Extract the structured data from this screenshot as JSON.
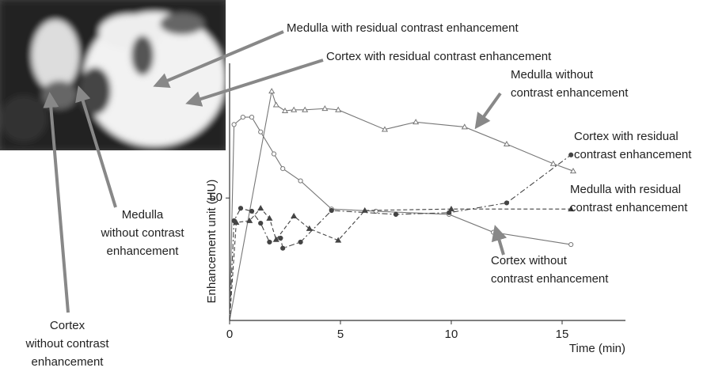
{
  "chart_data": {
    "type": "line",
    "x_label": "Time (min)",
    "y_label": "Enhancement unit (HU)",
    "xlim": [
      0,
      18
    ],
    "ylim": [
      0,
      105
    ],
    "xticks": [
      0,
      5,
      10,
      15
    ],
    "yticks": [
      50
    ],
    "grid": false,
    "series": [
      {
        "color": "#777777",
        "linestyle": "solid",
        "marker": "triangle-open",
        "x": [
          0,
          1.9,
          2.1,
          2.5,
          2.9,
          3.4,
          4.3,
          4.9,
          7.0,
          8.4,
          10.6,
          12.5,
          14.6,
          15.5
        ],
        "values": [
          0,
          93.6,
          88,
          85.6,
          86,
          86,
          86.5,
          86,
          78,
          81,
          79,
          72,
          64,
          61
        ]
      },
      {
        "color": "#777777",
        "linestyle": "solid",
        "marker": "circle-open",
        "x": [
          0,
          0.2,
          0.6,
          1.0,
          1.4,
          2.0,
          2.4,
          3.2,
          4.6,
          6.6,
          9.9,
          11.9,
          15.4
        ],
        "values": [
          0,
          80,
          83,
          83,
          77,
          68,
          62,
          57,
          45.5,
          44.6,
          43.3,
          36,
          31
        ]
      },
      {
        "color": "#444444",
        "linestyle": "dashdot",
        "marker": "circle-filled",
        "x": [
          0,
          0.2,
          0.5,
          1.0,
          1.4,
          1.8,
          2.3,
          2.4,
          3.2,
          4.6,
          7.5,
          9.9,
          12.5,
          15.4
        ],
        "values": [
          0,
          40.7,
          45.8,
          44.6,
          39.7,
          32,
          33.6,
          29.5,
          32,
          44.9,
          43.3,
          44,
          48,
          67.6
        ]
      },
      {
        "color": "#444444",
        "linestyle": "dashed",
        "marker": "triangle-filled",
        "x": [
          0,
          0.3,
          0.9,
          1.4,
          1.8,
          2.1,
          2.9,
          3.6,
          4.9,
          6.1,
          10,
          15.4
        ],
        "values": [
          0,
          40,
          40.7,
          45.8,
          41.7,
          33,
          42.6,
          37.5,
          32.7,
          44.9,
          45.5,
          45.5
        ]
      }
    ],
    "annotations": [
      {
        "lines": [
          "Medulla with residual contrast enhancement"
        ]
      },
      {
        "lines": [
          "Cortex with residual contrast enhancement"
        ]
      },
      {
        "lines": [
          "Medulla without",
          "contrast enhancement"
        ]
      },
      {
        "lines": [
          "Cortex with residual",
          "contrast enhancement"
        ]
      },
      {
        "lines": [
          "Medulla with residual",
          "contrast enhancement"
        ]
      },
      {
        "lines": [
          "Cortex without",
          "contrast enhancement"
        ]
      },
      {
        "lines": [
          "Medulla",
          "without contrast",
          "enhancement"
        ]
      },
      {
        "lines": [
          "Cortex",
          "without contrast",
          "enhancement"
        ]
      }
    ]
  }
}
